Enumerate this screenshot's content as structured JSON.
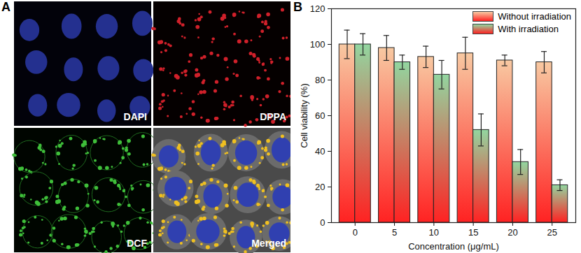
{
  "panel_labels": [
    "A",
    "B"
  ],
  "image_panels": [
    "DAPI",
    "DPPA",
    "DCF",
    "Merged"
  ],
  "chart_data": {
    "type": "bar",
    "categories": [
      0,
      5,
      10,
      15,
      20,
      25
    ],
    "x_label": "Concentration (μg/mL)",
    "y_label": "Cell viability (%)",
    "ylim": [
      0,
      120
    ],
    "yticks": [
      0,
      20,
      40,
      60,
      80,
      100,
      120
    ],
    "legend": "top-right",
    "series": [
      {
        "name": "Without irradiation",
        "color": "#f8c9a2",
        "values": [
          100,
          98,
          93,
          95,
          91,
          90
        ],
        "errors": [
          8,
          7,
          6,
          9,
          3,
          6
        ]
      },
      {
        "name": "With irradiation",
        "color": "#92d6a0",
        "values": [
          100,
          90,
          83,
          52,
          34,
          21
        ],
        "errors": [
          6,
          4,
          8,
          9,
          7,
          3
        ]
      }
    ]
  }
}
